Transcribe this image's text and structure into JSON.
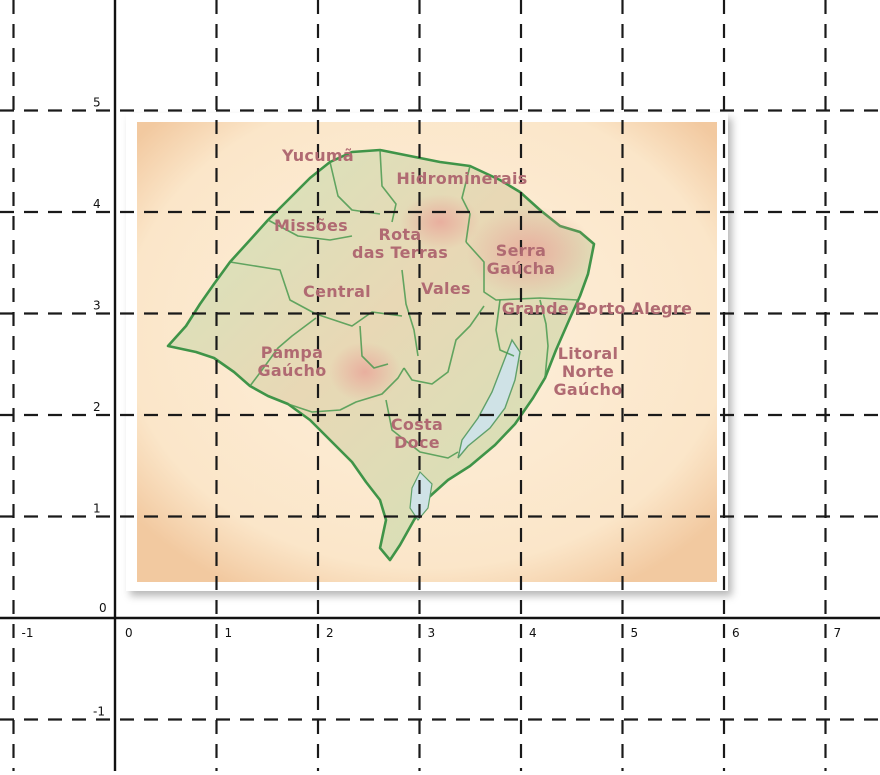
{
  "graph": {
    "x_ticks": [
      "-1",
      "0",
      "1",
      "2",
      "3",
      "4",
      "5",
      "6",
      "7"
    ],
    "y_ticks": [
      "-1",
      "0",
      "1",
      "2",
      "3",
      "4",
      "5"
    ]
  },
  "map": {
    "regions": [
      {
        "id": "yucuma",
        "lines": [
          "Yucumã"
        ]
      },
      {
        "id": "hidrominerais",
        "lines": [
          "Hidrominerais"
        ]
      },
      {
        "id": "missoes",
        "lines": [
          "Missões"
        ]
      },
      {
        "id": "rota-das-terras",
        "lines": [
          "Rota",
          "das Terras"
        ]
      },
      {
        "id": "serra-gaucha",
        "lines": [
          "Serra",
          "Gaúcha"
        ]
      },
      {
        "id": "central",
        "lines": [
          "Central"
        ]
      },
      {
        "id": "vales",
        "lines": [
          "Vales"
        ]
      },
      {
        "id": "grande-porto-alegre",
        "lines": [
          "Grande Porto Alegre"
        ]
      },
      {
        "id": "pampa-gaucho",
        "lines": [
          "Pampa",
          "Gaúcho"
        ]
      },
      {
        "id": "litoral-norte-gaucho",
        "lines": [
          "Litoral",
          "Norte",
          "Gaúcho"
        ]
      },
      {
        "id": "costa-doce",
        "lines": [
          "Costa",
          "Doce"
        ]
      }
    ],
    "colors": {
      "paper": "#fbe9cf",
      "land": "#e9d8b4",
      "land_green": "#bcd9a2",
      "border": "#4a9a50",
      "label": "#b06a72",
      "highlands": "#e6b0a0",
      "lagoon": "#c6dde3"
    }
  }
}
